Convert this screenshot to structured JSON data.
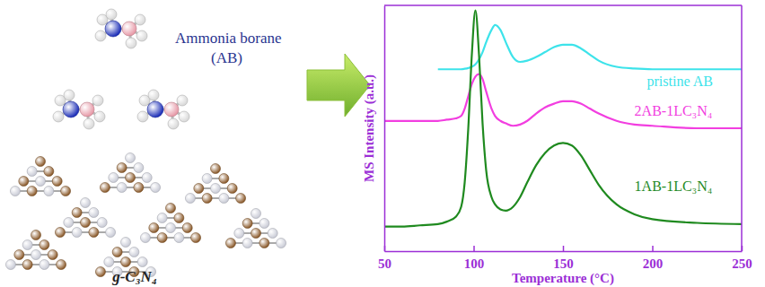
{
  "diagram": {
    "molecule_label": [
      "Ammonia borane",
      "(AB)"
    ],
    "material_label": "g-C₃N₄"
  },
  "chart_data": {
    "type": "line",
    "x_label": "Temperature (°C)",
    "y_label": "MS Intensity (a.u.)",
    "x": [
      50,
      60,
      70,
      80,
      85,
      90,
      93,
      95,
      97,
      99,
      101,
      103,
      105,
      107,
      110,
      112,
      115,
      118,
      122,
      126,
      130,
      135,
      140,
      145,
      150,
      155,
      160,
      165,
      170,
      180,
      190,
      200,
      225,
      250
    ],
    "series": [
      {
        "name": "pristine AB",
        "color": "#3de3ea",
        "values": [
          null,
          null,
          null,
          74,
          74,
          74,
          74,
          74.2,
          74.5,
          75,
          76,
          78,
          81,
          85,
          90,
          92,
          90,
          85,
          79,
          77,
          77.5,
          79,
          81,
          83,
          84,
          84,
          82.5,
          80,
          77.5,
          75,
          74.3,
          74,
          74,
          74
        ]
      },
      {
        "name": "2AB-1LC₃N₄",
        "color": "#f23ee0",
        "values": [
          53,
          53,
          53,
          53,
          53.5,
          54,
          55,
          58,
          63,
          68,
          71,
          72,
          70,
          65,
          58,
          55,
          53,
          52,
          51,
          51.5,
          53,
          56,
          58.5,
          60,
          61,
          61,
          60,
          58,
          56,
          53,
          51.5,
          51,
          50,
          50
        ]
      },
      {
        "name": "1AB-1LC₃N₄",
        "color": "#1f8a1f",
        "values": [
          10,
          10,
          10.5,
          11,
          12,
          14,
          18,
          28,
          50,
          80,
          98,
          80,
          52,
          33,
          22,
          19,
          17,
          16.5,
          18,
          22,
          28,
          35,
          40,
          43,
          44,
          43,
          39,
          33,
          27,
          19,
          15,
          13,
          11.5,
          11
        ]
      }
    ],
    "xlim": [
      50,
      250
    ],
    "xticks": [
      50,
      100,
      150,
      200,
      250
    ],
    "ylim": [
      0,
      100
    ],
    "tick_labels": "x"
  }
}
